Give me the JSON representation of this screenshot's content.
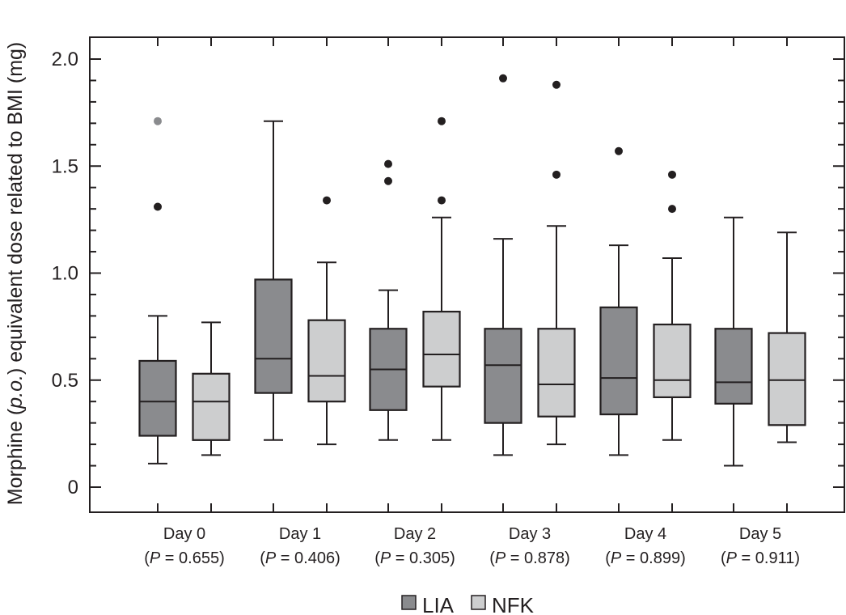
{
  "chart_data": {
    "type": "boxplot",
    "title": "",
    "xlabel": "",
    "ylabel": "Morphine (p.o.) equivalent dose related to BMI (mg)",
    "ylabel_parts": {
      "prefix": "Morphine (",
      "italic": "p.o.",
      "suffix": ") equivalent dose related to BMI (mg)"
    },
    "ylim": [
      0,
      2.0
    ],
    "yticks": [
      0,
      0.5,
      1.0,
      1.5,
      2.0
    ],
    "ytick_labels": [
      "0",
      "0.5",
      "1.0",
      "1.5",
      "2.0"
    ],
    "minor_tick_step": 0.1,
    "grid": false,
    "legend_position": "bottom-center",
    "categories": [
      "Day 0",
      "Day 1",
      "Day 2",
      "Day 3",
      "Day 4",
      "Day 5"
    ],
    "p_values": [
      "0.655",
      "0.406",
      "0.305",
      "0.878",
      "0.899",
      "0.911"
    ],
    "p_label": "P",
    "series": [
      {
        "name": "LIA",
        "color": "#8a8b8e",
        "boxes": [
          {
            "low": 0.11,
            "q1": 0.24,
            "median": 0.4,
            "q3": 0.59,
            "high": 0.8,
            "outliers": [
              1.31
            ],
            "extreme_outliers": [
              1.71
            ]
          },
          {
            "low": 0.22,
            "q1": 0.44,
            "median": 0.6,
            "q3": 0.97,
            "high": 1.71,
            "outliers": [],
            "extreme_outliers": []
          },
          {
            "low": 0.22,
            "q1": 0.36,
            "median": 0.55,
            "q3": 0.74,
            "high": 0.92,
            "outliers": [
              1.51,
              1.43
            ],
            "extreme_outliers": []
          },
          {
            "low": 0.15,
            "q1": 0.3,
            "median": 0.57,
            "q3": 0.74,
            "high": 1.16,
            "outliers": [
              1.91
            ],
            "extreme_outliers": []
          },
          {
            "low": 0.15,
            "q1": 0.34,
            "median": 0.51,
            "q3": 0.84,
            "high": 1.13,
            "outliers": [
              1.57
            ],
            "extreme_outliers": []
          },
          {
            "low": 0.1,
            "q1": 0.39,
            "median": 0.49,
            "q3": 0.74,
            "high": 1.26,
            "outliers": [],
            "extreme_outliers": []
          }
        ]
      },
      {
        "name": "NFK",
        "color": "#cdcecf",
        "boxes": [
          {
            "low": 0.15,
            "q1": 0.22,
            "median": 0.4,
            "q3": 0.53,
            "high": 0.77,
            "outliers": [],
            "extreme_outliers": []
          },
          {
            "low": 0.2,
            "q1": 0.4,
            "median": 0.52,
            "q3": 0.78,
            "high": 1.05,
            "outliers": [
              1.34
            ],
            "extreme_outliers": []
          },
          {
            "low": 0.22,
            "q1": 0.47,
            "median": 0.62,
            "q3": 0.82,
            "high": 1.26,
            "outliers": [
              1.71,
              1.34
            ],
            "extreme_outliers": []
          },
          {
            "low": 0.2,
            "q1": 0.33,
            "median": 0.48,
            "q3": 0.74,
            "high": 1.22,
            "outliers": [
              1.88,
              1.46
            ],
            "extreme_outliers": []
          },
          {
            "low": 0.22,
            "q1": 0.42,
            "median": 0.5,
            "q3": 0.76,
            "high": 1.07,
            "outliers": [
              1.46,
              1.3
            ],
            "extreme_outliers": []
          },
          {
            "low": 0.21,
            "q1": 0.29,
            "median": 0.5,
            "q3": 0.72,
            "high": 1.19,
            "outliers": [],
            "extreme_outliers": []
          }
        ]
      }
    ],
    "colors": {
      "outlier": "#231f20",
      "extreme_outlier": "#8a8b8e",
      "line": "#231f20"
    }
  }
}
